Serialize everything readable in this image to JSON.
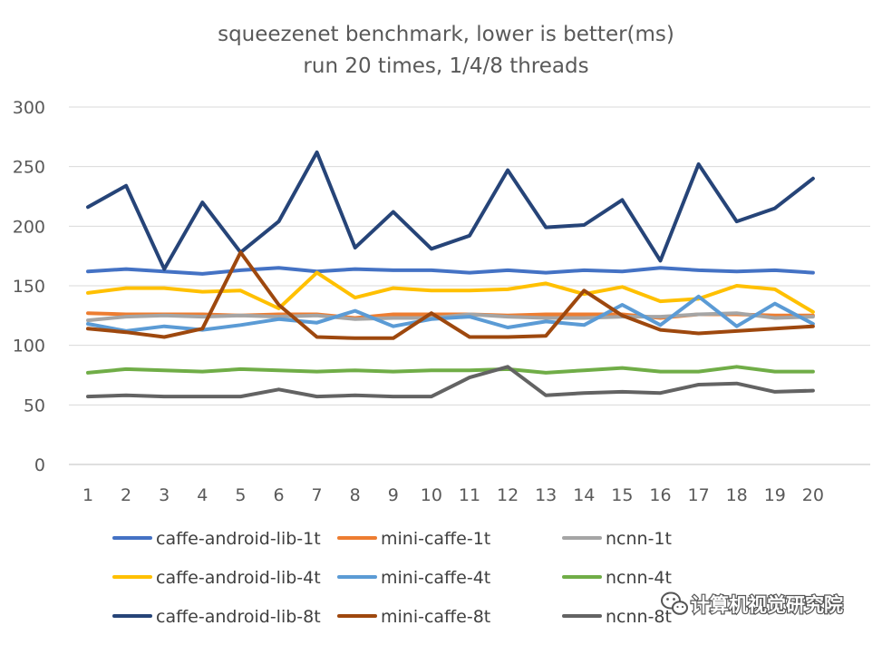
{
  "chart_data": {
    "type": "line",
    "title": "squeezenet benchmark, lower is better(ms)",
    "subtitle": "run 20 times, 1/4/8 threads",
    "xlabel": "",
    "ylabel": "",
    "x": [
      1,
      2,
      3,
      4,
      5,
      6,
      7,
      8,
      9,
      10,
      11,
      12,
      13,
      14,
      15,
      16,
      17,
      18,
      19,
      20
    ],
    "x_tick_labels": [
      "1",
      "2",
      "3",
      "4",
      "5",
      "6",
      "7",
      "8",
      "9",
      "10",
      "11",
      "12",
      "13",
      "14",
      "15",
      "16",
      "17",
      "18",
      "19",
      "20"
    ],
    "ylim": [
      0,
      300
    ],
    "y_ticks": [
      0,
      50,
      100,
      150,
      200,
      250,
      300
    ],
    "y_tick_labels": [
      "0",
      "50",
      "100",
      "150",
      "200",
      "250",
      "300"
    ],
    "grid": true,
    "legend_position": "bottom",
    "series": [
      {
        "name": "caffe-android-lib-1t",
        "color": "#4472C4",
        "values": [
          162,
          164,
          162,
          160,
          163,
          165,
          162,
          164,
          163,
          163,
          161,
          163,
          161,
          163,
          162,
          165,
          163,
          162,
          163,
          161
        ]
      },
      {
        "name": "mini-caffe-1t",
        "color": "#ED7D31",
        "values": [
          127,
          126,
          126,
          126,
          125,
          126,
          126,
          123,
          126,
          126,
          126,
          125,
          126,
          126,
          126,
          123,
          126,
          126,
          125,
          125
        ]
      },
      {
        "name": "ncnn-1t",
        "color": "#A5A5A5",
        "values": [
          121,
          124,
          125,
          124,
          125,
          124,
          125,
          122,
          123,
          123,
          126,
          124,
          123,
          123,
          124,
          124,
          126,
          127,
          123,
          124
        ]
      },
      {
        "name": "caffe-android-lib-4t",
        "color": "#FFC000",
        "values": [
          144,
          148,
          148,
          145,
          146,
          131,
          161,
          140,
          148,
          146,
          146,
          147,
          152,
          143,
          149,
          137,
          139,
          150,
          147,
          128
        ]
      },
      {
        "name": "mini-caffe-4t",
        "color": "#5B9BD5",
        "values": [
          118,
          112,
          116,
          113,
          117,
          122,
          119,
          129,
          116,
          122,
          124,
          115,
          120,
          117,
          134,
          117,
          141,
          116,
          135,
          118
        ]
      },
      {
        "name": "ncnn-4t",
        "color": "#70AD47",
        "values": [
          77,
          80,
          79,
          78,
          80,
          79,
          78,
          79,
          78,
          79,
          79,
          80,
          77,
          79,
          81,
          78,
          78,
          82,
          78,
          78
        ]
      },
      {
        "name": "caffe-android-lib-8t",
        "color": "#264478",
        "values": [
          216,
          234,
          164,
          220,
          178,
          204,
          262,
          182,
          212,
          181,
          192,
          247,
          199,
          201,
          222,
          171,
          252,
          204,
          215,
          240
        ]
      },
      {
        "name": "mini-caffe-8t",
        "color": "#9E480E",
        "values": [
          114,
          111,
          107,
          114,
          178,
          134,
          107,
          106,
          106,
          127,
          107,
          107,
          108,
          146,
          125,
          113,
          110,
          112,
          114,
          116
        ]
      },
      {
        "name": "ncnn-8t",
        "color": "#636363",
        "values": [
          57,
          58,
          57,
          57,
          57,
          63,
          57,
          58,
          57,
          57,
          73,
          82,
          58,
          60,
          61,
          60,
          67,
          68,
          61,
          62
        ]
      }
    ]
  },
  "watermark": {
    "text": "计算机视觉研究院",
    "icon": "wechat-icon"
  }
}
